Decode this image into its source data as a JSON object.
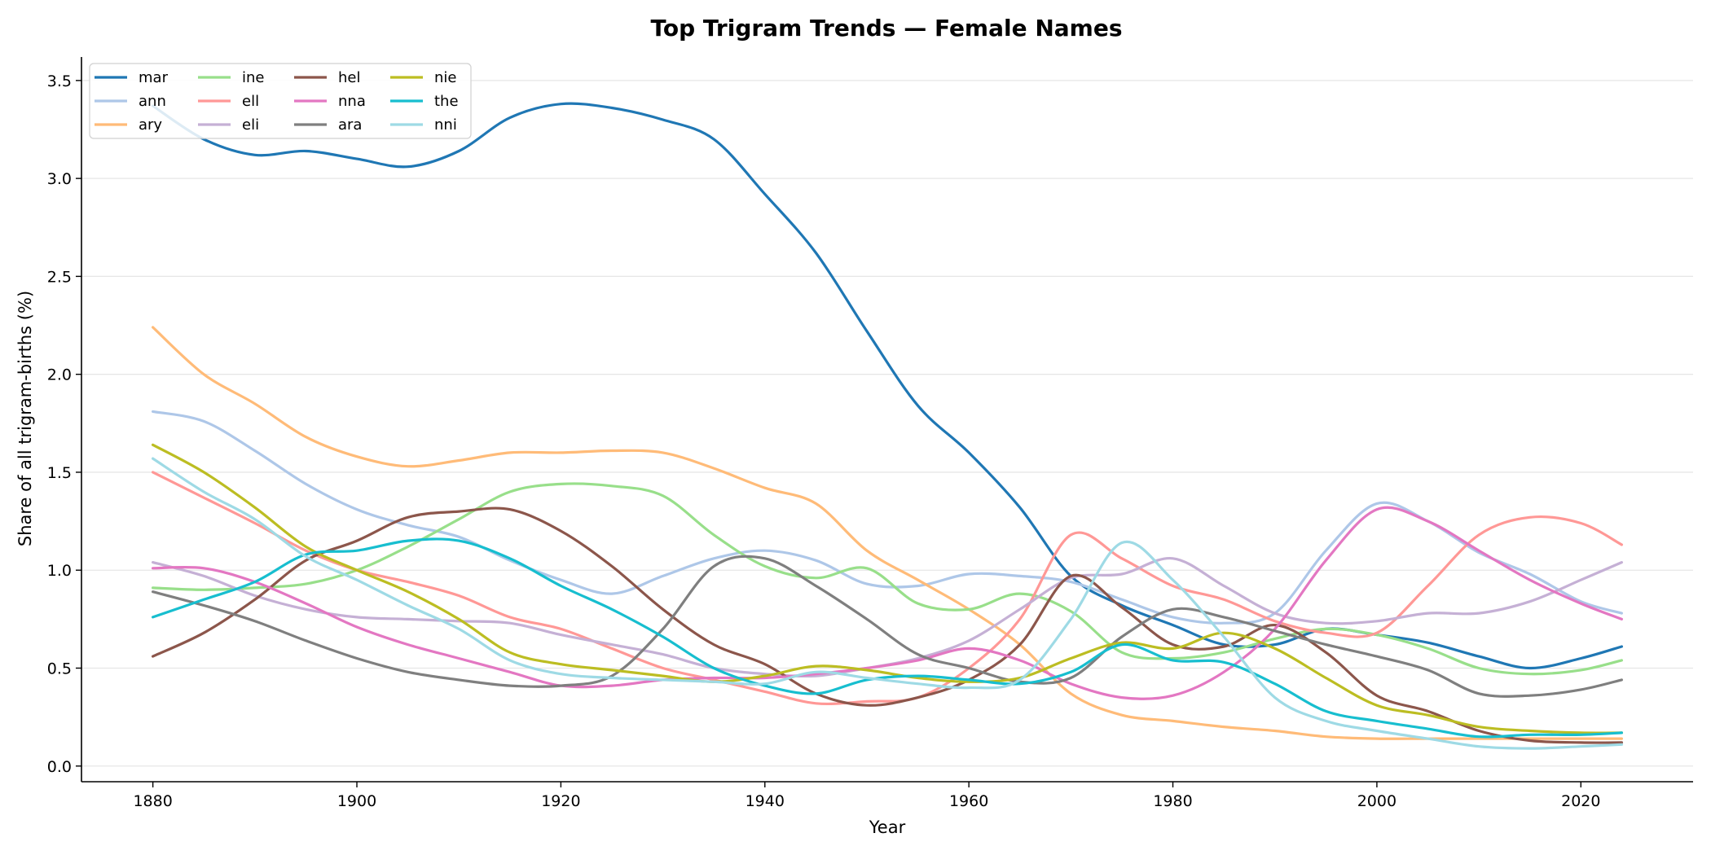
{
  "chart_data": {
    "type": "line",
    "title": "Top Trigram Trends — Female Names",
    "xlabel": "Year",
    "ylabel": "Share of all trigram-births (%)",
    "xlim": [
      1873,
      2031
    ],
    "ylim": [
      -0.08,
      3.62
    ],
    "xticks": [
      1880,
      1900,
      1920,
      1940,
      1960,
      1980,
      2000,
      2020
    ],
    "yticks": [
      0.0,
      0.5,
      1.0,
      1.5,
      2.0,
      2.5,
      3.0,
      3.5
    ],
    "ytick_labels": [
      "0.0",
      "0.5",
      "1.0",
      "1.5",
      "2.0",
      "2.5",
      "3.0",
      "3.5"
    ],
    "grid": "horizontal",
    "legend": {
      "placement": "top-left",
      "columns": 4
    },
    "x": [
      1880,
      1885,
      1890,
      1895,
      1900,
      1905,
      1910,
      1915,
      1920,
      1925,
      1930,
      1935,
      1940,
      1945,
      1950,
      1955,
      1960,
      1965,
      1970,
      1975,
      1980,
      1985,
      1990,
      1995,
      2000,
      2005,
      2010,
      2015,
      2020,
      2024
    ],
    "series": [
      {
        "name": "mar",
        "color": "#1f77b4",
        "values": [
          3.37,
          3.2,
          3.12,
          3.14,
          3.1,
          3.06,
          3.14,
          3.31,
          3.38,
          3.36,
          3.3,
          3.2,
          2.92,
          2.62,
          2.22,
          1.84,
          1.6,
          1.32,
          0.97,
          0.82,
          0.72,
          0.62,
          0.62,
          0.7,
          0.67,
          0.63,
          0.56,
          0.5,
          0.55,
          0.61
        ]
      },
      {
        "name": "ann",
        "color": "#aec7e8",
        "values": [
          1.81,
          1.76,
          1.61,
          1.44,
          1.31,
          1.23,
          1.17,
          1.05,
          0.95,
          0.88,
          0.97,
          1.06,
          1.1,
          1.05,
          0.93,
          0.92,
          0.98,
          0.97,
          0.94,
          0.85,
          0.76,
          0.73,
          0.78,
          1.1,
          1.34,
          1.25,
          1.09,
          0.98,
          0.84,
          0.78
        ]
      },
      {
        "name": "ary",
        "color": "#ffbb78",
        "values": [
          2.24,
          2.0,
          1.85,
          1.68,
          1.58,
          1.53,
          1.56,
          1.6,
          1.6,
          1.61,
          1.6,
          1.52,
          1.42,
          1.34,
          1.1,
          0.95,
          0.8,
          0.62,
          0.37,
          0.26,
          0.23,
          0.2,
          0.18,
          0.15,
          0.14,
          0.14,
          0.14,
          0.14,
          0.14,
          0.14
        ]
      },
      {
        "name": "ine",
        "color": "#98df8a",
        "values": [
          0.91,
          0.9,
          0.91,
          0.93,
          1.0,
          1.12,
          1.26,
          1.4,
          1.44,
          1.43,
          1.38,
          1.18,
          1.02,
          0.96,
          1.01,
          0.83,
          0.8,
          0.88,
          0.79,
          0.58,
          0.55,
          0.58,
          0.65,
          0.7,
          0.67,
          0.6,
          0.5,
          0.47,
          0.49,
          0.54
        ]
      },
      {
        "name": "ell",
        "color": "#ff9896",
        "values": [
          1.5,
          1.37,
          1.24,
          1.1,
          1.0,
          0.94,
          0.87,
          0.76,
          0.7,
          0.6,
          0.5,
          0.44,
          0.38,
          0.32,
          0.33,
          0.35,
          0.5,
          0.75,
          1.18,
          1.06,
          0.92,
          0.85,
          0.74,
          0.68,
          0.68,
          0.92,
          1.18,
          1.27,
          1.24,
          1.13
        ]
      },
      {
        "name": "eli",
        "color": "#c5b0d5",
        "values": [
          1.04,
          0.97,
          0.87,
          0.8,
          0.76,
          0.75,
          0.74,
          0.73,
          0.67,
          0.62,
          0.57,
          0.5,
          0.47,
          0.46,
          0.5,
          0.55,
          0.64,
          0.8,
          0.96,
          0.98,
          1.06,
          0.92,
          0.78,
          0.73,
          0.74,
          0.78,
          0.78,
          0.84,
          0.95,
          1.04
        ]
      },
      {
        "name": "hel",
        "color": "#8c564b",
        "values": [
          0.56,
          0.68,
          0.85,
          1.05,
          1.15,
          1.27,
          1.3,
          1.31,
          1.2,
          1.02,
          0.8,
          0.62,
          0.52,
          0.37,
          0.31,
          0.35,
          0.44,
          0.62,
          0.97,
          0.81,
          0.62,
          0.61,
          0.72,
          0.58,
          0.36,
          0.28,
          0.18,
          0.13,
          0.12,
          0.12
        ]
      },
      {
        "name": "nna",
        "color": "#e377c2",
        "values": [
          1.01,
          1.01,
          0.94,
          0.83,
          0.71,
          0.62,
          0.55,
          0.48,
          0.41,
          0.41,
          0.44,
          0.45,
          0.45,
          0.47,
          0.5,
          0.54,
          0.6,
          0.54,
          0.42,
          0.35,
          0.36,
          0.48,
          0.7,
          1.05,
          1.31,
          1.25,
          1.1,
          0.95,
          0.83,
          0.75
        ]
      },
      {
        "name": "ara",
        "color": "#7f7f7f",
        "values": [
          0.89,
          0.82,
          0.74,
          0.64,
          0.55,
          0.48,
          0.44,
          0.41,
          0.41,
          0.46,
          0.7,
          1.02,
          1.06,
          0.92,
          0.75,
          0.57,
          0.5,
          0.43,
          0.45,
          0.66,
          0.8,
          0.76,
          0.69,
          0.62,
          0.56,
          0.49,
          0.37,
          0.36,
          0.39,
          0.44
        ]
      },
      {
        "name": "nie",
        "color": "#bcbd22",
        "values": [
          1.64,
          1.5,
          1.32,
          1.12,
          1.0,
          0.89,
          0.75,
          0.58,
          0.52,
          0.49,
          0.46,
          0.43,
          0.46,
          0.51,
          0.49,
          0.45,
          0.43,
          0.45,
          0.55,
          0.63,
          0.6,
          0.68,
          0.6,
          0.45,
          0.31,
          0.26,
          0.2,
          0.18,
          0.17,
          0.17
        ]
      },
      {
        "name": "the",
        "color": "#17becf",
        "values": [
          0.76,
          0.85,
          0.94,
          1.08,
          1.1,
          1.15,
          1.15,
          1.06,
          0.92,
          0.8,
          0.66,
          0.5,
          0.41,
          0.37,
          0.44,
          0.46,
          0.44,
          0.42,
          0.48,
          0.62,
          0.54,
          0.53,
          0.42,
          0.28,
          0.23,
          0.19,
          0.15,
          0.16,
          0.16,
          0.17
        ]
      },
      {
        "name": "nni",
        "color": "#9edae5",
        "values": [
          1.57,
          1.4,
          1.26,
          1.07,
          0.95,
          0.82,
          0.7,
          0.54,
          0.47,
          0.45,
          0.44,
          0.43,
          0.42,
          0.48,
          0.45,
          0.42,
          0.4,
          0.44,
          0.75,
          1.14,
          0.95,
          0.66,
          0.35,
          0.23,
          0.18,
          0.14,
          0.1,
          0.09,
          0.1,
          0.11
        ]
      }
    ]
  }
}
